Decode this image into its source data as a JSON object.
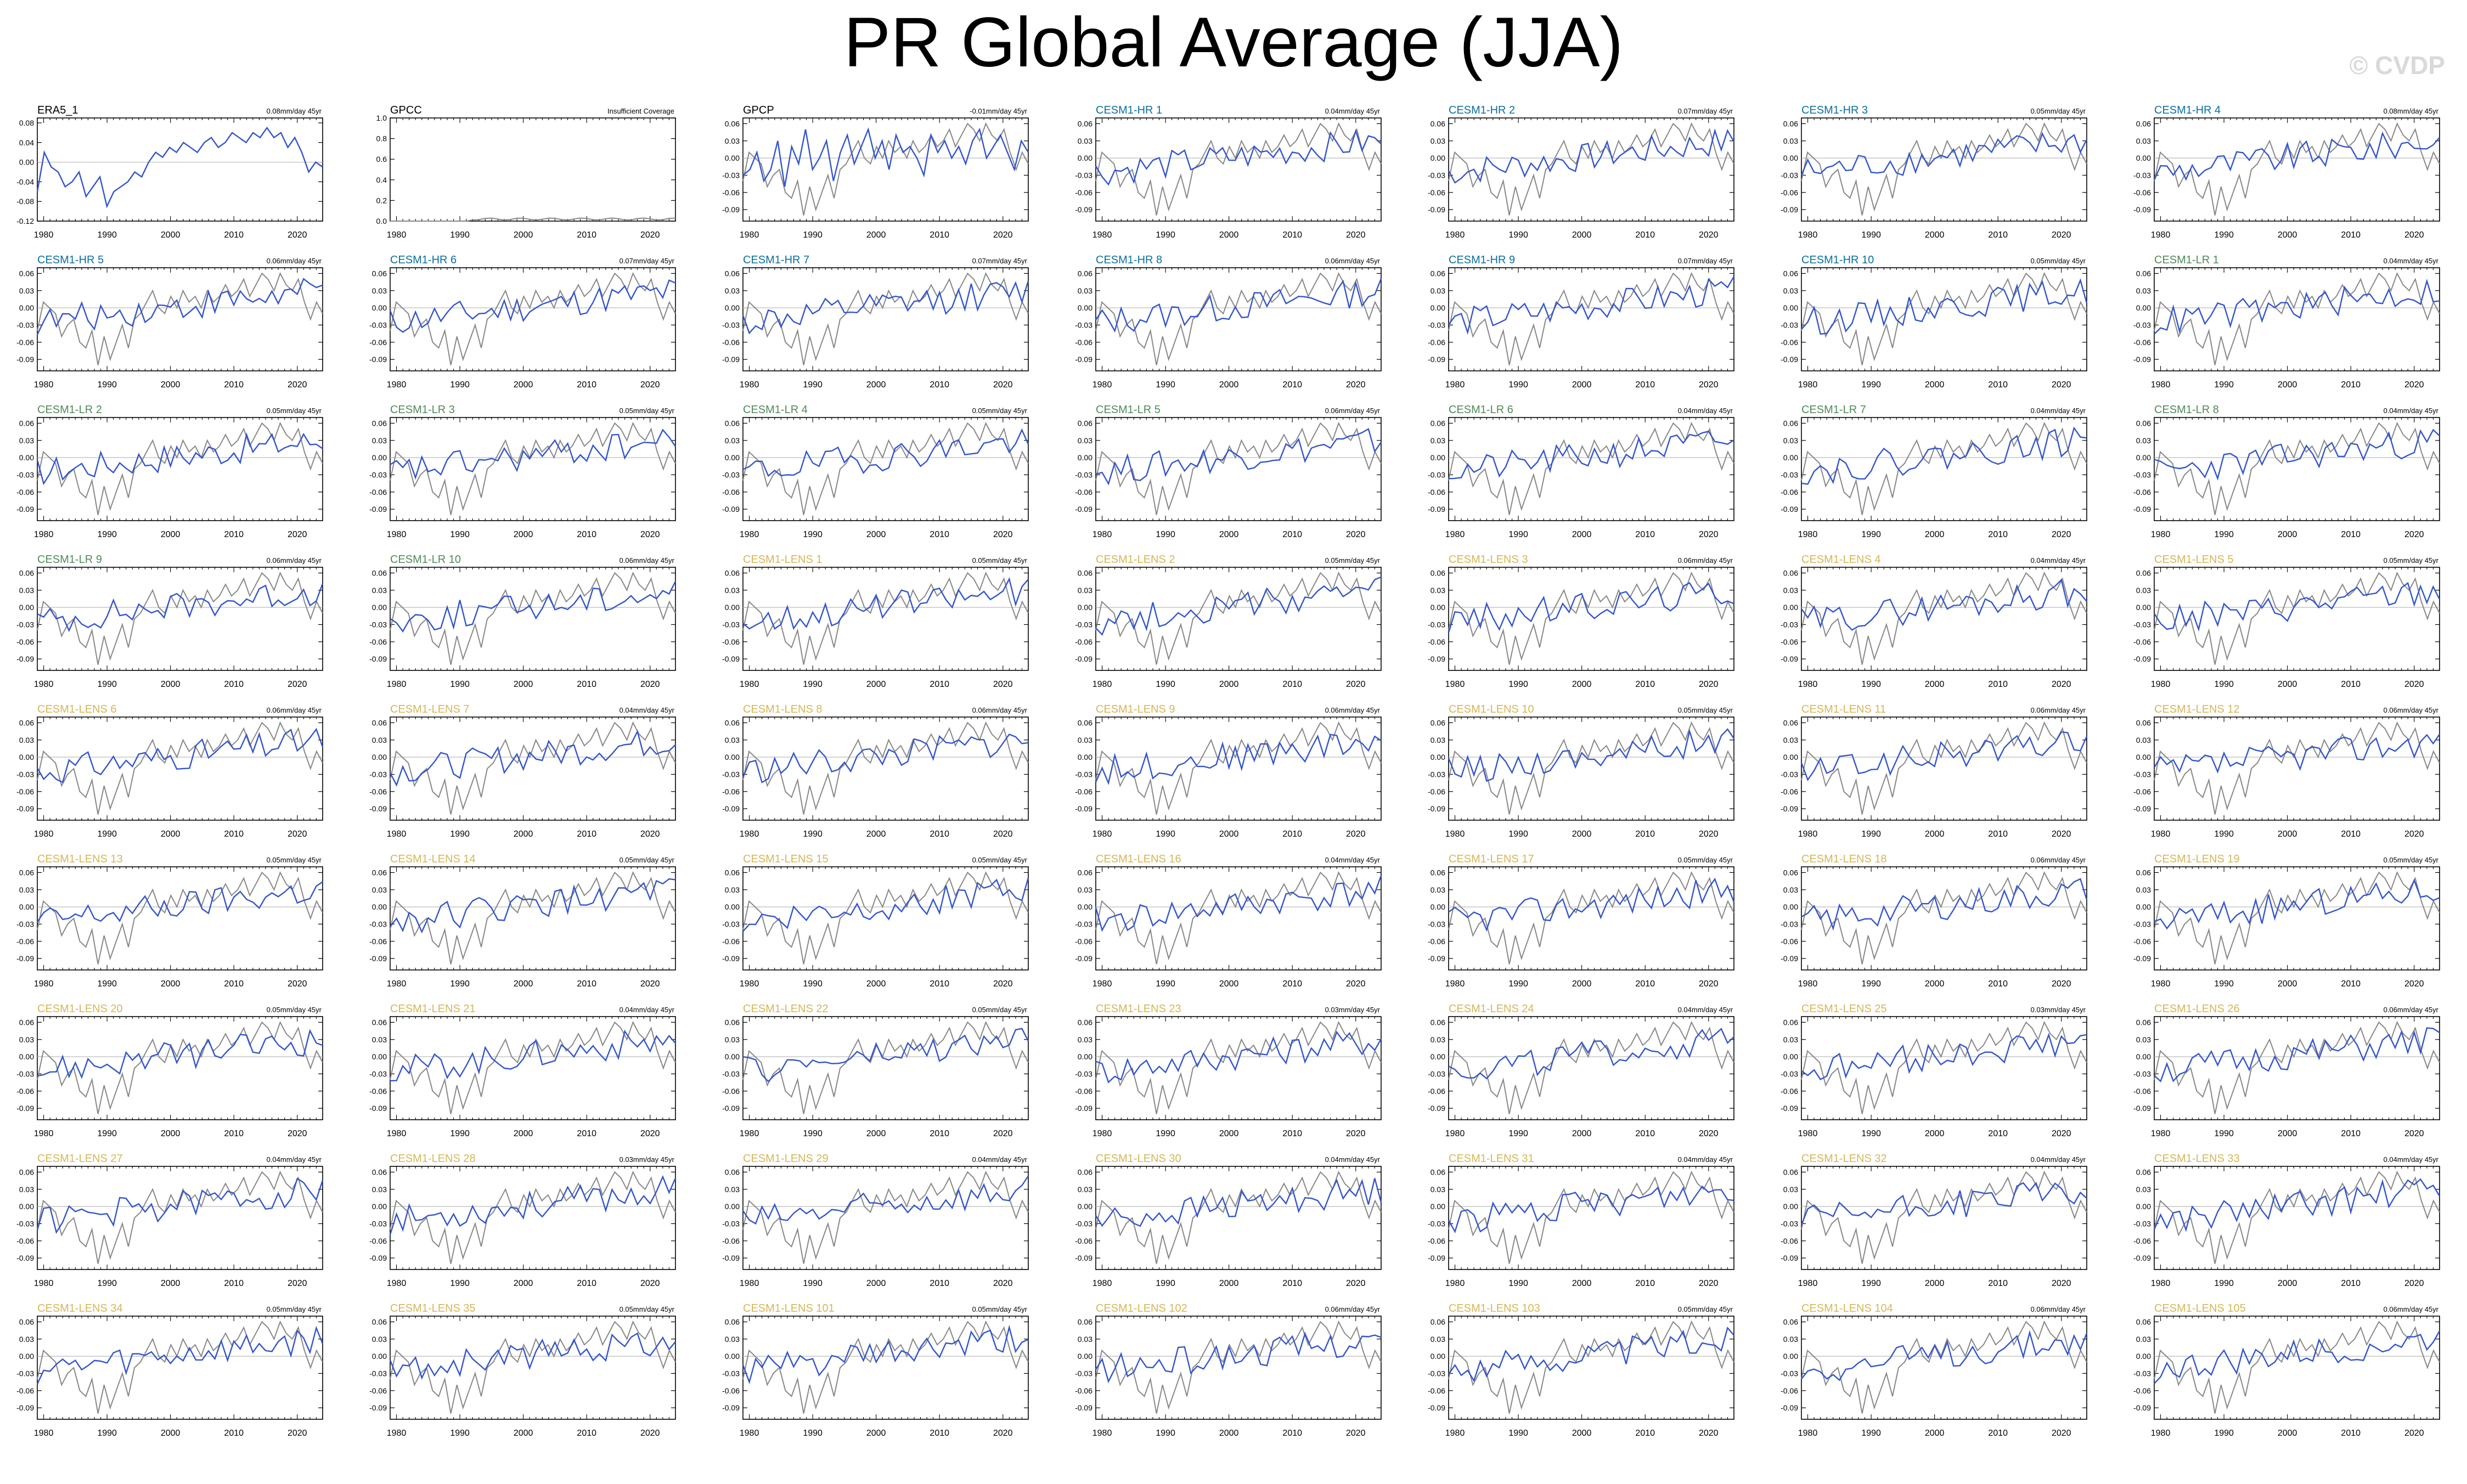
{
  "page": {
    "title": "PR Global Average (JJA)",
    "watermark": "© CVDP"
  },
  "colors": {
    "observation": "#000000",
    "cesm1_hr": "#0a6fa0",
    "cesm1_lr": "#4f8a58",
    "cesm1_lens": "#d6b656",
    "model_line": "#3355cc",
    "obs_line": "#888888",
    "zero_line": "#bbbbbb"
  },
  "chart_data": {
    "type": "line",
    "description_years": [
      1979,
      2024
    ],
    "x_ticks": [
      1980,
      1990,
      2000,
      2010,
      2020
    ],
    "default_y_ticks": [
      "0.06",
      "0.03",
      "0.00",
      "-0.03",
      "-0.06",
      "-0.09"
    ],
    "default_ylim": [
      -0.11,
      0.07
    ],
    "obs_series": [
      -0.04,
      0.01,
      0.0,
      -0.01,
      -0.05,
      -0.03,
      -0.02,
      -0.06,
      -0.07,
      -0.04,
      -0.1,
      -0.05,
      -0.09,
      -0.06,
      -0.03,
      -0.07,
      -0.02,
      -0.01,
      0.01,
      0.03,
      0.0,
      -0.01,
      0.02,
      0.0,
      0.03,
      0.01,
      0.02,
      0.0,
      0.03,
      0.01,
      0.02,
      0.04,
      0.02,
      0.03,
      0.05,
      0.02,
      0.04,
      0.06,
      0.05,
      0.03,
      0.06,
      0.04,
      0.03,
      0.05,
      0.01,
      -0.02,
      0.01,
      -0.01
    ],
    "panels": [
      {
        "name": "ERA5_1",
        "group": "observation",
        "trend": "0.08mm/day 45yr",
        "y_ticks": [
          "0.08",
          "0.04",
          "0.00",
          "-0.04",
          "-0.08",
          "-0.12"
        ],
        "ylim": [
          -0.12,
          0.09
        ],
        "series": [
          -0.06,
          0.02,
          -0.01,
          -0.02,
          -0.05,
          -0.04,
          -0.02,
          -0.07,
          -0.05,
          -0.03,
          -0.09,
          -0.06,
          -0.05,
          -0.04,
          -0.02,
          -0.03,
          0.0,
          0.02,
          0.01,
          0.03,
          0.02,
          0.04,
          0.03,
          0.02,
          0.04,
          0.05,
          0.03,
          0.04,
          0.06,
          0.05,
          0.04,
          0.06,
          0.05,
          0.07,
          0.05,
          0.06,
          0.03,
          0.05,
          0.02,
          -0.02,
          0.0,
          -0.01
        ]
      },
      {
        "name": "GPCC",
        "group": "observation",
        "trend": "Insufficient Coverage",
        "y_ticks": [
          "1.0",
          "0.8",
          "0.6",
          "0.4",
          "0.2",
          "0.0"
        ],
        "ylim": [
          0,
          1
        ],
        "series": []
      },
      {
        "name": "GPCP",
        "group": "observation",
        "trend": "-0.01mm/day 45yr",
        "series": [
          -0.03,
          -0.02,
          0.01,
          -0.04,
          -0.02,
          0.03,
          -0.05,
          0.02,
          -0.01,
          0.05,
          -0.02,
          0.0,
          0.03,
          -0.04,
          0.01,
          0.04,
          -0.01,
          0.02,
          0.05,
          0.0,
          0.03,
          -0.02,
          0.04,
          0.01,
          0.02,
          0.0,
          -0.03,
          0.04,
          0.01,
          0.03,
          0.0,
          0.02,
          -0.01,
          0.03,
          0.05,
          0.0,
          0.02,
          0.04,
          0.01,
          -0.02,
          0.03,
          0.01
        ]
      },
      {
        "name": "CESM1-HR 1",
        "group": "cesm1_hr",
        "trend": "0.04mm/day 45yr"
      },
      {
        "name": "CESM1-HR 2",
        "group": "cesm1_hr",
        "trend": "0.07mm/day 45yr"
      },
      {
        "name": "CESM1-HR 3",
        "group": "cesm1_hr",
        "trend": "0.05mm/day 45yr"
      },
      {
        "name": "CESM1-HR 4",
        "group": "cesm1_hr",
        "trend": "0.08mm/day 45yr"
      },
      {
        "name": "CESM1-HR 5",
        "group": "cesm1_hr",
        "trend": "0.06mm/day 45yr"
      },
      {
        "name": "CESM1-HR 6",
        "group": "cesm1_hr",
        "trend": "0.07mm/day 45yr"
      },
      {
        "name": "CESM1-HR 7",
        "group": "cesm1_hr",
        "trend": "0.07mm/day 45yr"
      },
      {
        "name": "CESM1-HR 8",
        "group": "cesm1_hr",
        "trend": "0.06mm/day 45yr"
      },
      {
        "name": "CESM1-HR 9",
        "group": "cesm1_hr",
        "trend": "0.07mm/day 45yr"
      },
      {
        "name": "CESM1-HR 10",
        "group": "cesm1_hr",
        "trend": "0.05mm/day 45yr"
      },
      {
        "name": "CESM1-LR 1",
        "group": "cesm1_lr",
        "trend": "0.04mm/day 45yr"
      },
      {
        "name": "CESM1-LR 2",
        "group": "cesm1_lr",
        "trend": "0.05mm/day 45yr"
      },
      {
        "name": "CESM1-LR 3",
        "group": "cesm1_lr",
        "trend": "0.05mm/day 45yr"
      },
      {
        "name": "CESM1-LR 4",
        "group": "cesm1_lr",
        "trend": "0.05mm/day 45yr"
      },
      {
        "name": "CESM1-LR 5",
        "group": "cesm1_lr",
        "trend": "0.06mm/day 45yr"
      },
      {
        "name": "CESM1-LR 6",
        "group": "cesm1_lr",
        "trend": "0.04mm/day 45yr"
      },
      {
        "name": "CESM1-LR 7",
        "group": "cesm1_lr",
        "trend": "0.04mm/day 45yr"
      },
      {
        "name": "CESM1-LR 8",
        "group": "cesm1_lr",
        "trend": "0.04mm/day 45yr"
      },
      {
        "name": "CESM1-LR 9",
        "group": "cesm1_lr",
        "trend": "0.06mm/day 45yr"
      },
      {
        "name": "CESM1-LR 10",
        "group": "cesm1_lr",
        "trend": "0.06mm/day 45yr"
      },
      {
        "name": "CESM1-LENS 1",
        "group": "cesm1_lens",
        "trend": "0.05mm/day 45yr"
      },
      {
        "name": "CESM1-LENS 2",
        "group": "cesm1_lens",
        "trend": "0.05mm/day 45yr"
      },
      {
        "name": "CESM1-LENS 3",
        "group": "cesm1_lens",
        "trend": "0.06mm/day 45yr"
      },
      {
        "name": "CESM1-LENS 4",
        "group": "cesm1_lens",
        "trend": "0.04mm/day 45yr"
      },
      {
        "name": "CESM1-LENS 5",
        "group": "cesm1_lens",
        "trend": "0.05mm/day 45yr"
      },
      {
        "name": "CESM1-LENS 6",
        "group": "cesm1_lens",
        "trend": "0.06mm/day 45yr"
      },
      {
        "name": "CESM1-LENS 7",
        "group": "cesm1_lens",
        "trend": "0.04mm/day 45yr"
      },
      {
        "name": "CESM1-LENS 8",
        "group": "cesm1_lens",
        "trend": "0.06mm/day 45yr"
      },
      {
        "name": "CESM1-LENS 9",
        "group": "cesm1_lens",
        "trend": "0.06mm/day 45yr"
      },
      {
        "name": "CESM1-LENS 10",
        "group": "cesm1_lens",
        "trend": "0.05mm/day 45yr"
      },
      {
        "name": "CESM1-LENS 11",
        "group": "cesm1_lens",
        "trend": "0.06mm/day 45yr"
      },
      {
        "name": "CESM1-LENS 12",
        "group": "cesm1_lens",
        "trend": "0.06mm/day 45yr"
      },
      {
        "name": "CESM1-LENS 13",
        "group": "cesm1_lens",
        "trend": "0.05mm/day 45yr"
      },
      {
        "name": "CESM1-LENS 14",
        "group": "cesm1_lens",
        "trend": "0.05mm/day 45yr"
      },
      {
        "name": "CESM1-LENS 15",
        "group": "cesm1_lens",
        "trend": "0.05mm/day 45yr"
      },
      {
        "name": "CESM1-LENS 16",
        "group": "cesm1_lens",
        "trend": "0.04mm/day 45yr"
      },
      {
        "name": "CESM1-LENS 17",
        "group": "cesm1_lens",
        "trend": "0.05mm/day 45yr"
      },
      {
        "name": "CESM1-LENS 18",
        "group": "cesm1_lens",
        "trend": "0.06mm/day 45yr"
      },
      {
        "name": "CESM1-LENS 19",
        "group": "cesm1_lens",
        "trend": "0.05mm/day 45yr"
      },
      {
        "name": "CESM1-LENS 20",
        "group": "cesm1_lens",
        "trend": "0.05mm/day 45yr"
      },
      {
        "name": "CESM1-LENS 21",
        "group": "cesm1_lens",
        "trend": "0.04mm/day 45yr"
      },
      {
        "name": "CESM1-LENS 22",
        "group": "cesm1_lens",
        "trend": "0.05mm/day 45yr"
      },
      {
        "name": "CESM1-LENS 23",
        "group": "cesm1_lens",
        "trend": "0.03mm/day 45yr"
      },
      {
        "name": "CESM1-LENS 24",
        "group": "cesm1_lens",
        "trend": "0.04mm/day 45yr"
      },
      {
        "name": "CESM1-LENS 25",
        "group": "cesm1_lens",
        "trend": "0.03mm/day 45yr"
      },
      {
        "name": "CESM1-LENS 26",
        "group": "cesm1_lens",
        "trend": "0.06mm/day 45yr"
      },
      {
        "name": "CESM1-LENS 27",
        "group": "cesm1_lens",
        "trend": "0.04mm/day 45yr"
      },
      {
        "name": "CESM1-LENS 28",
        "group": "cesm1_lens",
        "trend": "0.03mm/day 45yr"
      },
      {
        "name": "CESM1-LENS 29",
        "group": "cesm1_lens",
        "trend": "0.04mm/day 45yr"
      },
      {
        "name": "CESM1-LENS 30",
        "group": "cesm1_lens",
        "trend": "0.04mm/day 45yr"
      },
      {
        "name": "CESM1-LENS 31",
        "group": "cesm1_lens",
        "trend": "0.04mm/day 45yr"
      },
      {
        "name": "CESM1-LENS 32",
        "group": "cesm1_lens",
        "trend": "0.04mm/day 45yr"
      },
      {
        "name": "CESM1-LENS 33",
        "group": "cesm1_lens",
        "trend": "0.04mm/day 45yr"
      },
      {
        "name": "CESM1-LENS 34",
        "group": "cesm1_lens",
        "trend": "0.05mm/day 45yr"
      },
      {
        "name": "CESM1-LENS 35",
        "group": "cesm1_lens",
        "trend": "0.05mm/day 45yr"
      },
      {
        "name": "CESM1-LENS 101",
        "group": "cesm1_lens",
        "trend": "0.05mm/day 45yr"
      },
      {
        "name": "CESM1-LENS 102",
        "group": "cesm1_lens",
        "trend": "0.06mm/day 45yr"
      },
      {
        "name": "CESM1-LENS 103",
        "group": "cesm1_lens",
        "trend": "0.05mm/day 45yr"
      },
      {
        "name": "CESM1-LENS 104",
        "group": "cesm1_lens",
        "trend": "0.06mm/day 45yr"
      },
      {
        "name": "CESM1-LENS 105",
        "group": "cesm1_lens",
        "trend": "0.06mm/day 45yr"
      }
    ]
  }
}
